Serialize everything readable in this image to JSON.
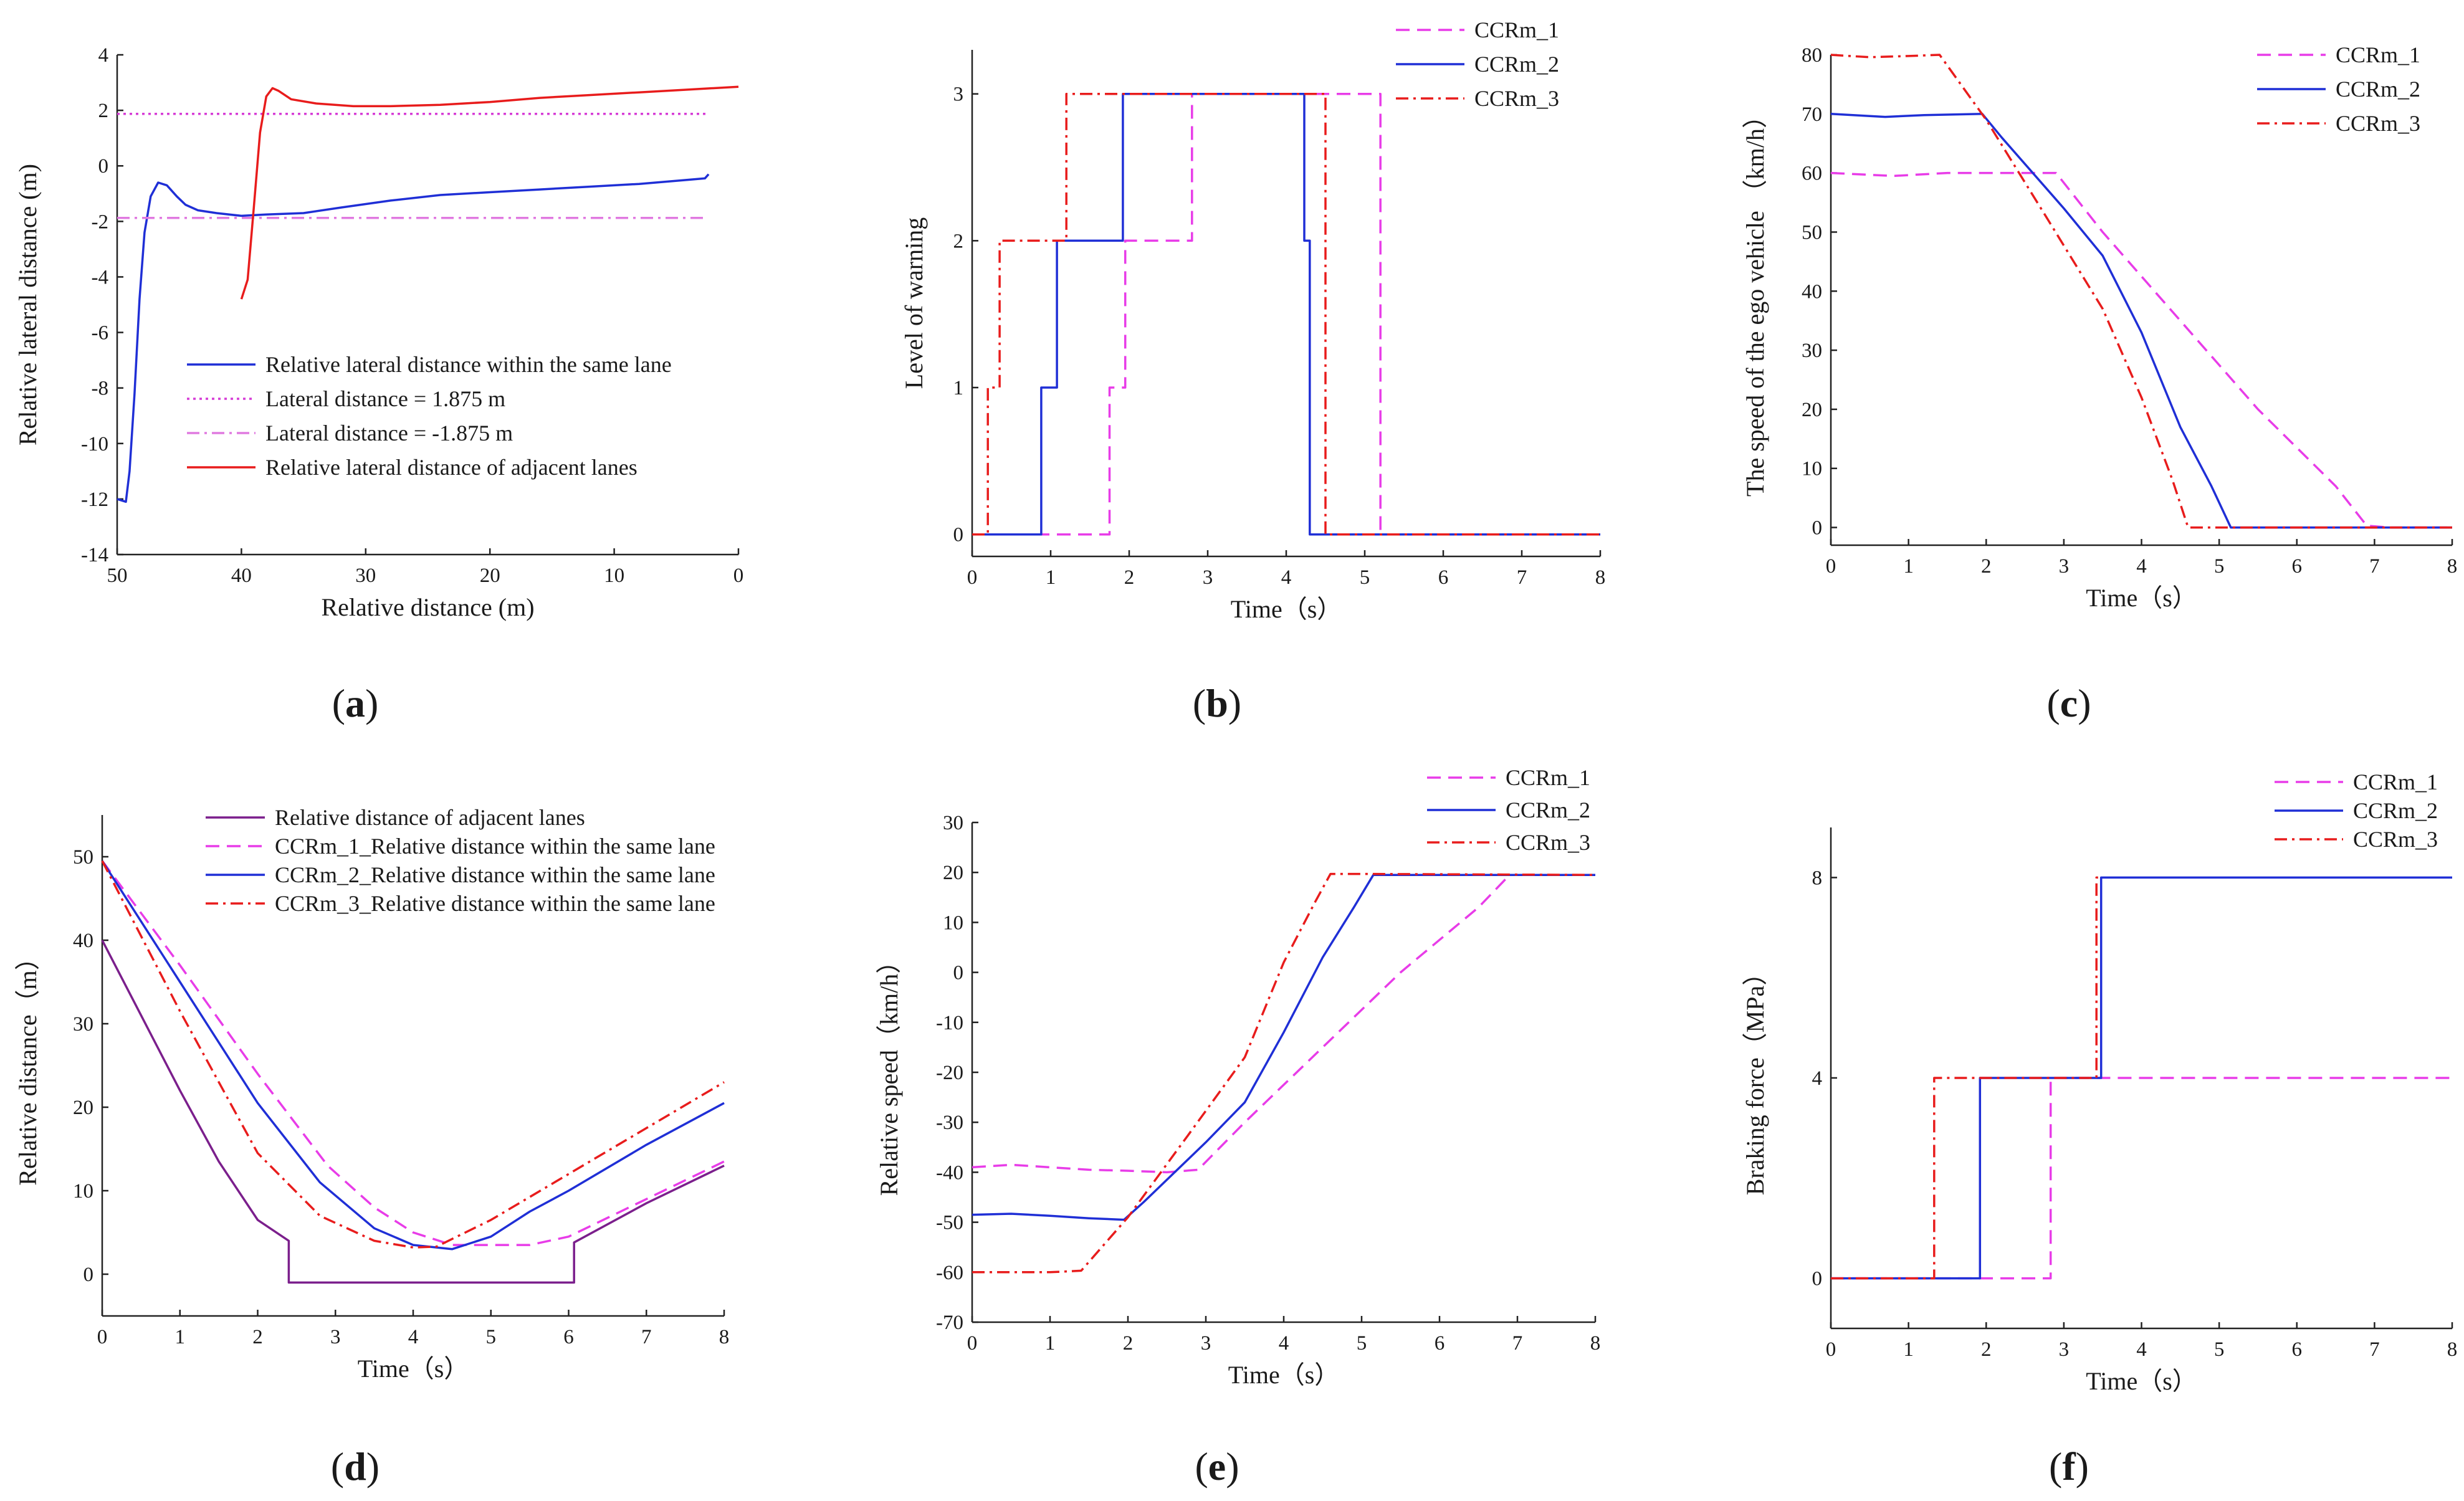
{
  "figure": {
    "panel_count": 6
  },
  "chart_data": [
    {
      "id": "a",
      "type": "line",
      "caption": "a",
      "xlabel": "Relative  distance (m)",
      "ylabel": "Relative lateral distance (m)",
      "xlim": [
        50,
        0
      ],
      "ylim": [
        -14,
        4
      ],
      "xticks": [
        50,
        40,
        30,
        20,
        10,
        0
      ],
      "yticks": [
        4,
        2,
        0,
        -2,
        -4,
        -6,
        -8,
        -10,
        -12,
        -14
      ],
      "legend_position": "lower-right",
      "series": [
        {
          "name": "Relative lateral distance within the same lane",
          "color": "#1f2fd6",
          "style": "solid",
          "x": [
            50,
            49.3,
            49.0,
            48.6,
            48.2,
            47.8,
            47.3,
            46.7,
            46.0,
            45.2,
            44.5,
            43.5,
            42.0,
            40.0,
            38.0,
            35.0,
            32.0,
            28.0,
            24.0,
            20.0,
            16.0,
            12.0,
            8.0,
            4.0,
            2.7,
            2.4
          ],
          "y": [
            -12.0,
            -12.1,
            -11.0,
            -8.2,
            -4.8,
            -2.4,
            -1.1,
            -0.6,
            -0.7,
            -1.1,
            -1.4,
            -1.6,
            -1.7,
            -1.8,
            -1.75,
            -1.7,
            -1.5,
            -1.25,
            -1.05,
            -0.95,
            -0.85,
            -0.75,
            -0.65,
            -0.5,
            -0.45,
            -0.3
          ]
        },
        {
          "name": "Lateral distance = 1.875 m",
          "color": "#d63cd6",
          "style": "dotted",
          "x": [
            50,
            2.5
          ],
          "y": [
            1.875,
            1.875
          ]
        },
        {
          "name": "Lateral distance = -1.875 m",
          "color": "#e07ae0",
          "style": "dashdot",
          "x": [
            50,
            2.5
          ],
          "y": [
            -1.875,
            -1.875
          ]
        },
        {
          "name": "Relative lateral distance of adjacent lanes",
          "color": "#e81c1c",
          "style": "solid",
          "x": [
            40.0,
            39.5,
            39.0,
            38.5,
            38.0,
            37.5,
            37.0,
            36.0,
            34.0,
            31.0,
            28.0,
            24.0,
            20.0,
            16.0,
            12.0,
            8.0,
            4.0,
            0
          ],
          "y": [
            -4.8,
            -4.1,
            -1.5,
            1.2,
            2.5,
            2.8,
            2.7,
            2.4,
            2.25,
            2.15,
            2.15,
            2.2,
            2.3,
            2.45,
            2.55,
            2.65,
            2.75,
            2.85
          ]
        }
      ]
    },
    {
      "id": "b",
      "type": "line",
      "caption": "b",
      "xlabel": "Time（s）",
      "ylabel": "Level of warning",
      "xlim": [
        0,
        8
      ],
      "ylim": [
        -0.15,
        3.3
      ],
      "xticks": [
        0,
        1,
        2,
        3,
        4,
        5,
        6,
        7,
        8
      ],
      "yticks": [
        0,
        1,
        2,
        3
      ],
      "legend_position": "top-right-outside",
      "series": [
        {
          "name": "CCRm_1",
          "color": "#e83ce8",
          "style": "dashed",
          "x": [
            0,
            1.75,
            1.75,
            1.85,
            1.85,
            1.95,
            1.95,
            2.8,
            2.8,
            5.2,
            5.2,
            8
          ],
          "y": [
            0,
            0,
            1,
            1,
            1,
            1,
            2,
            2,
            3,
            3,
            0,
            0
          ]
        },
        {
          "name": "CCRm_2",
          "color": "#1f2fd6",
          "style": "solid",
          "x": [
            0,
            0.88,
            0.88,
            1.08,
            1.08,
            1.92,
            1.92,
            4.23,
            4.23,
            4.3,
            4.3,
            8
          ],
          "y": [
            0,
            0,
            1,
            1,
            2,
            2,
            3,
            3,
            2,
            2,
            0,
            0
          ]
        },
        {
          "name": "CCRm_3",
          "color": "#e81c1c",
          "style": "dashdot",
          "x": [
            0,
            0.2,
            0.2,
            0.35,
            0.35,
            1.2,
            1.2,
            4.5,
            4.5,
            8
          ],
          "y": [
            0,
            0,
            1,
            1,
            2,
            2,
            3,
            3,
            0,
            0
          ]
        }
      ]
    },
    {
      "id": "c",
      "type": "line",
      "caption": "c",
      "xlabel": "Time（s）",
      "ylabel": "The speed of the ego vehicle  （km/h）",
      "xlim": [
        0,
        8
      ],
      "ylim": [
        -3,
        80
      ],
      "xticks": [
        0,
        1,
        2,
        3,
        4,
        5,
        6,
        7,
        8
      ],
      "yticks": [
        0,
        10,
        20,
        30,
        40,
        50,
        60,
        70,
        80
      ],
      "legend_position": "top-right",
      "series": [
        {
          "name": "CCRm_1",
          "color": "#e83ce8",
          "style": "dashed",
          "x": [
            0,
            0.8,
            1.5,
            2.0,
            2.5,
            2.9,
            3.5,
            4.5,
            5.5,
            6.5,
            6.9,
            7.2,
            8
          ],
          "y": [
            60,
            59.5,
            60,
            60,
            60,
            60,
            50,
            35,
            20,
            7,
            0.3,
            0,
            0
          ]
        },
        {
          "name": "CCRm_2",
          "color": "#1f2fd6",
          "style": "solid",
          "x": [
            0,
            0.7,
            1.2,
            1.95,
            2.2,
            3.0,
            3.5,
            4.0,
            4.5,
            4.9,
            5.15,
            5.5,
            8
          ],
          "y": [
            70,
            69.5,
            69.8,
            70,
            66,
            54,
            46,
            33,
            17,
            7,
            0,
            0,
            0
          ]
        },
        {
          "name": "CCRm_3",
          "color": "#e81c1c",
          "style": "dashdot",
          "x": [
            0,
            0.5,
            1.0,
            1.4,
            2.0,
            2.8,
            3.5,
            4.0,
            4.4,
            4.6,
            5.0,
            8
          ],
          "y": [
            80,
            79.6,
            79.8,
            80,
            69,
            52,
            37,
            22,
            8,
            0,
            0,
            0
          ]
        }
      ]
    },
    {
      "id": "d",
      "type": "line",
      "caption": "d",
      "xlabel": "Time（s）",
      "ylabel": "Relative distance（m）",
      "xlim": [
        0,
        8
      ],
      "ylim": [
        -5,
        55
      ],
      "xticks": [
        0,
        1,
        2,
        3,
        4,
        5,
        6,
        7,
        8
      ],
      "yticks": [
        0,
        10,
        20,
        30,
        40,
        50
      ],
      "legend_position": "top",
      "series": [
        {
          "name": "Relative distance of adjacent lanes",
          "color": "#7b1f8c",
          "style": "solid",
          "x": [
            0,
            0.5,
            1.0,
            1.5,
            2.0,
            2.4,
            2.4,
            6.07,
            6.07,
            7.0,
            8.0
          ],
          "y": [
            40,
            31,
            22,
            13.5,
            6.5,
            4,
            -1,
            -1,
            3.8,
            8.5,
            13
          ]
        },
        {
          "name": "CCRm_1_Relative distance within the same lane",
          "color": "#e83ce8",
          "style": "dashed",
          "x": [
            0,
            1.0,
            2.0,
            2.9,
            3.5,
            4.0,
            4.5,
            5.0,
            5.5,
            6.0,
            7.0,
            8.0
          ],
          "y": [
            49.5,
            37,
            24,
            13,
            8,
            5,
            3.5,
            3.5,
            3.5,
            4.5,
            9,
            13.5
          ]
        },
        {
          "name": "CCRm_2_Relative distance within the same lane",
          "color": "#1f2fd6",
          "style": "solid",
          "x": [
            0,
            1.0,
            2.0,
            2.8,
            3.5,
            4.0,
            4.5,
            5.0,
            5.5,
            6.0,
            7.0,
            8.0
          ],
          "y": [
            49.5,
            35,
            20.5,
            11,
            5.5,
            3.5,
            3,
            4.5,
            7.5,
            10,
            15.5,
            20.5
          ]
        },
        {
          "name": "CCRm_3_Relative distance within the same lane",
          "color": "#e81c1c",
          "style": "dashdot",
          "x": [
            0,
            1.0,
            2.0,
            2.8,
            3.5,
            4.0,
            4.3,
            5.0,
            6.0,
            7.0,
            8.0
          ],
          "y": [
            49.5,
            31.5,
            14.5,
            7,
            4,
            3.2,
            3.3,
            6.5,
            12,
            17.5,
            23
          ]
        }
      ]
    },
    {
      "id": "e",
      "type": "line",
      "caption": "e",
      "xlabel": "Time（s）",
      "ylabel": "Relative speed（km/h）",
      "xlim": [
        0,
        8
      ],
      "ylim": [
        -70,
        30
      ],
      "xticks": [
        0,
        1,
        2,
        3,
        4,
        5,
        6,
        7,
        8
      ],
      "yticks": [
        30,
        20,
        10,
        0,
        -10,
        -20,
        -30,
        -40,
        -50,
        -60,
        -70
      ],
      "legend_position": "top-right-outside",
      "series": [
        {
          "name": "CCRm_1",
          "color": "#e83ce8",
          "style": "dashed",
          "x": [
            0,
            0.5,
            1.0,
            1.5,
            2.0,
            2.5,
            2.9,
            3.5,
            4.5,
            5.5,
            6.5,
            6.9,
            7.5,
            8.0
          ],
          "y": [
            -39,
            -38.5,
            -39,
            -39.5,
            -39.7,
            -40,
            -39.5,
            -30,
            -15,
            0,
            13,
            19.5,
            19.5,
            19.5
          ]
        },
        {
          "name": "CCRm_2",
          "color": "#1f2fd6",
          "style": "solid",
          "x": [
            0,
            0.5,
            1.0,
            1.5,
            1.95,
            2.2,
            3.0,
            3.5,
            4.0,
            4.5,
            4.9,
            5.15,
            5.6,
            8.0
          ],
          "y": [
            -48.5,
            -48.3,
            -48.7,
            -49.2,
            -49.5,
            -46,
            -34,
            -26,
            -12,
            3,
            13,
            19.5,
            19.5,
            19.5
          ]
        },
        {
          "name": "CCRm_3",
          "color": "#e81c1c",
          "style": "dashdot",
          "x": [
            0,
            0.5,
            1.0,
            1.4,
            2.0,
            2.8,
            3.5,
            4.0,
            4.4,
            4.6,
            5.0,
            8.0
          ],
          "y": [
            -60,
            -60,
            -60,
            -59.7,
            -49,
            -32,
            -17,
            2,
            14,
            19.7,
            19.7,
            19.5
          ]
        }
      ]
    },
    {
      "id": "f",
      "type": "line",
      "caption": "f",
      "xlabel": "Time（s）",
      "ylabel": "Braking force（MPa）",
      "xlim": [
        0,
        8
      ],
      "ylim": [
        -1,
        9
      ],
      "xticks": [
        0,
        1,
        2,
        3,
        4,
        5,
        6,
        7,
        8
      ],
      "yticks": [
        0,
        4,
        8
      ],
      "legend_position": "top-right",
      "series": [
        {
          "name": "CCRm_1",
          "color": "#e83ce8",
          "style": "dashed",
          "x": [
            0,
            2.83,
            2.83,
            8
          ],
          "y": [
            0,
            0,
            4,
            4
          ]
        },
        {
          "name": "CCRm_2",
          "color": "#1f2fd6",
          "style": "solid",
          "x": [
            0,
            1.92,
            1.92,
            3.48,
            3.48,
            8
          ],
          "y": [
            0,
            0,
            4,
            4,
            8,
            8
          ]
        },
        {
          "name": "CCRm_3",
          "color": "#e81c1c",
          "style": "dashdot",
          "x": [
            0,
            1.33,
            1.33,
            3.42,
            3.42,
            3.48
          ],
          "y": [
            0,
            0,
            4,
            4,
            8,
            8
          ]
        }
      ]
    }
  ]
}
